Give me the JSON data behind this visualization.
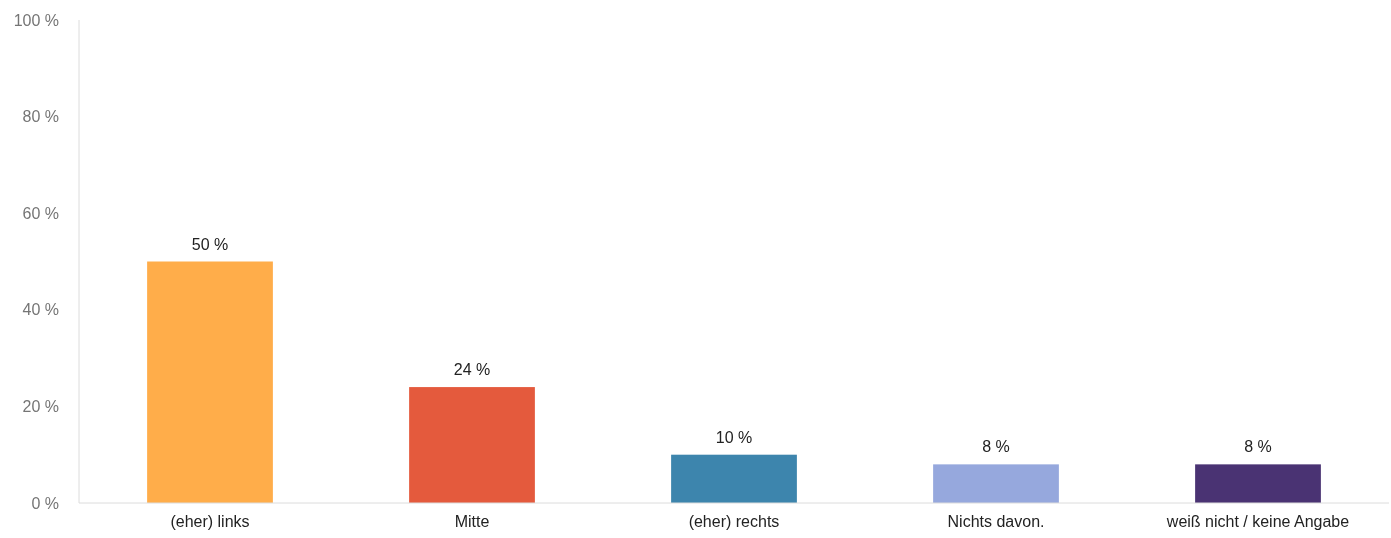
{
  "chart_data": {
    "type": "bar",
    "categories": [
      "(eher) links",
      "Mitte",
      "(eher) rechts",
      "Nichts davon.",
      "weiß nicht / keine Angabe"
    ],
    "values": [
      50,
      24,
      10,
      8,
      8
    ],
    "colors": [
      "#ffad4a",
      "#e45a3d",
      "#3d85ad",
      "#96a8dd",
      "#4a3373"
    ],
    "value_labels": [
      "50 %",
      "24 %",
      "10 %",
      "8 %",
      "8 %"
    ],
    "ylim": [
      0,
      100
    ],
    "yticks": [
      {
        "value": 0,
        "label": "0 %"
      },
      {
        "value": 20,
        "label": "20 %"
      },
      {
        "value": 40,
        "label": "40 %"
      },
      {
        "value": 60,
        "label": "60 %"
      },
      {
        "value": 80,
        "label": "80 %"
      },
      {
        "value": 100,
        "label": "100 %"
      }
    ],
    "grid": false
  }
}
